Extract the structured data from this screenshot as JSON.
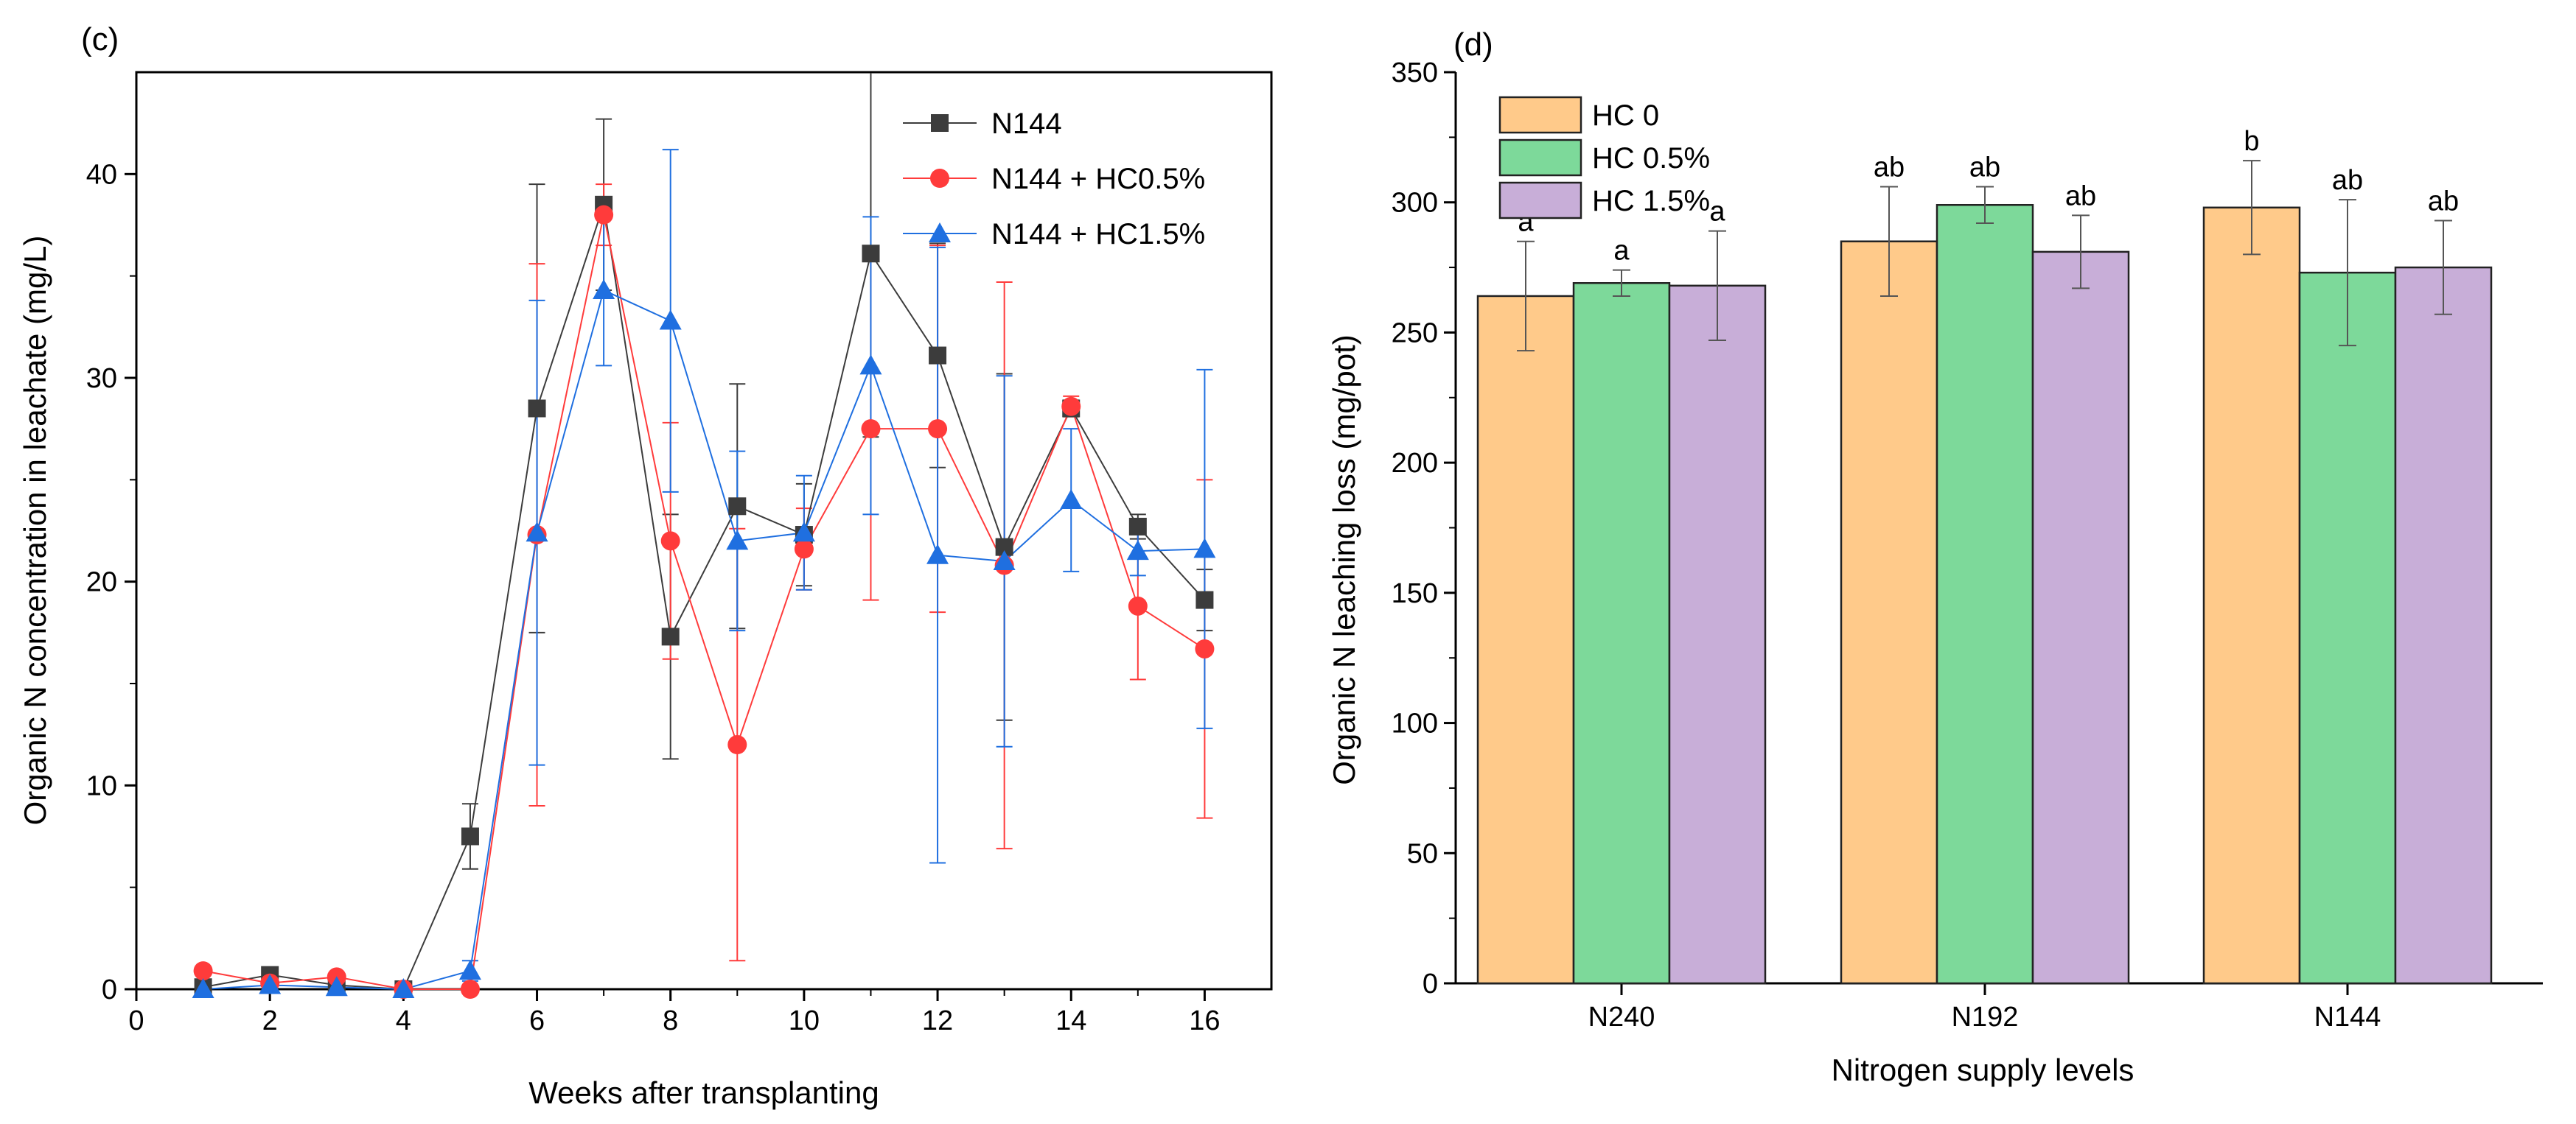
{
  "chart_data": [
    {
      "panel": "(c)",
      "type": "line",
      "xlabel": "Weeks after transplanting",
      "ylabel": "Organic N concentration in leachate (mg/L)",
      "xlim": [
        0,
        17
      ],
      "ylim": [
        0,
        45
      ],
      "xticks": [
        0,
        2,
        4,
        6,
        8,
        10,
        12,
        14,
        16
      ],
      "yticks": [
        0,
        10,
        20,
        30,
        40
      ],
      "x": [
        1,
        2,
        3,
        4,
        5,
        6,
        7,
        8,
        9,
        10,
        11,
        12,
        13,
        14,
        15,
        16
      ],
      "legend_position": "top-right",
      "series": [
        {
          "name": "N144",
          "color": "#3c3c3c",
          "marker": "square",
          "values": [
            0.1,
            0.7,
            0.2,
            0.0,
            7.5,
            28.5,
            38.5,
            17.3,
            23.7,
            22.3,
            36.1,
            31.1,
            21.7,
            28.5,
            22.7,
            19.1
          ],
          "errors": [
            0.2,
            0.3,
            0.2,
            0.1,
            1.6,
            11.0,
            4.2,
            6.0,
            6.0,
            2.5,
            9.0,
            5.5,
            8.5,
            0.4,
            0.6,
            1.5
          ]
        },
        {
          "name": "N144 + HC0.5%",
          "color": "#ff3b3b",
          "marker": "circle",
          "values": [
            0.9,
            0.3,
            0.6,
            0.0,
            0.0,
            22.3,
            38.0,
            22.0,
            12.0,
            21.6,
            27.5,
            27.5,
            20.8,
            28.6,
            18.8,
            16.7
          ],
          "errors": [
            0.2,
            0.2,
            0.2,
            0.1,
            0.1,
            13.3,
            1.5,
            5.8,
            10.6,
            2.0,
            8.4,
            9.0,
            13.9,
            0.5,
            3.6,
            8.3
          ]
        },
        {
          "name": "N144 + HC1.5%",
          "color": "#1f6fe0",
          "marker": "triangle",
          "values": [
            0.0,
            0.2,
            0.1,
            0.0,
            0.9,
            22.4,
            34.3,
            32.8,
            22.0,
            22.4,
            30.6,
            21.3,
            21.0,
            24.0,
            21.5,
            21.6
          ],
          "errors": [
            0.1,
            0.1,
            0.1,
            0.1,
            0.5,
            11.4,
            3.7,
            8.4,
            4.4,
            2.8,
            7.3,
            15.1,
            9.1,
            3.5,
            1.2,
            8.8
          ]
        }
      ]
    },
    {
      "panel": "(d)",
      "type": "bar",
      "xlabel": "Nitrogen supply levels",
      "ylabel": "Organic N leaching loss (mg/pot)",
      "ylim": [
        0,
        350
      ],
      "yticks": [
        0,
        50,
        100,
        150,
        200,
        250,
        300,
        350
      ],
      "categories": [
        "N240",
        "N192",
        "N144"
      ],
      "legend_position": "top-left",
      "series": [
        {
          "name": "HC 0",
          "color": "#ffca8a",
          "values": [
            264,
            285,
            298
          ],
          "errors": [
            21,
            21,
            18
          ],
          "letters": [
            "a",
            "ab",
            "b"
          ]
        },
        {
          "name": "HC 0.5%",
          "color": "#7dd99a",
          "values": [
            269,
            299,
            273
          ],
          "errors": [
            5,
            7,
            28
          ],
          "letters": [
            "a",
            "ab",
            "ab"
          ]
        },
        {
          "name": "HC 1.5%",
          "color": "#c8aed8",
          "values": [
            268,
            281,
            275
          ],
          "errors": [
            21,
            14,
            18
          ],
          "letters": [
            "a",
            "ab",
            "ab"
          ]
        }
      ]
    }
  ]
}
